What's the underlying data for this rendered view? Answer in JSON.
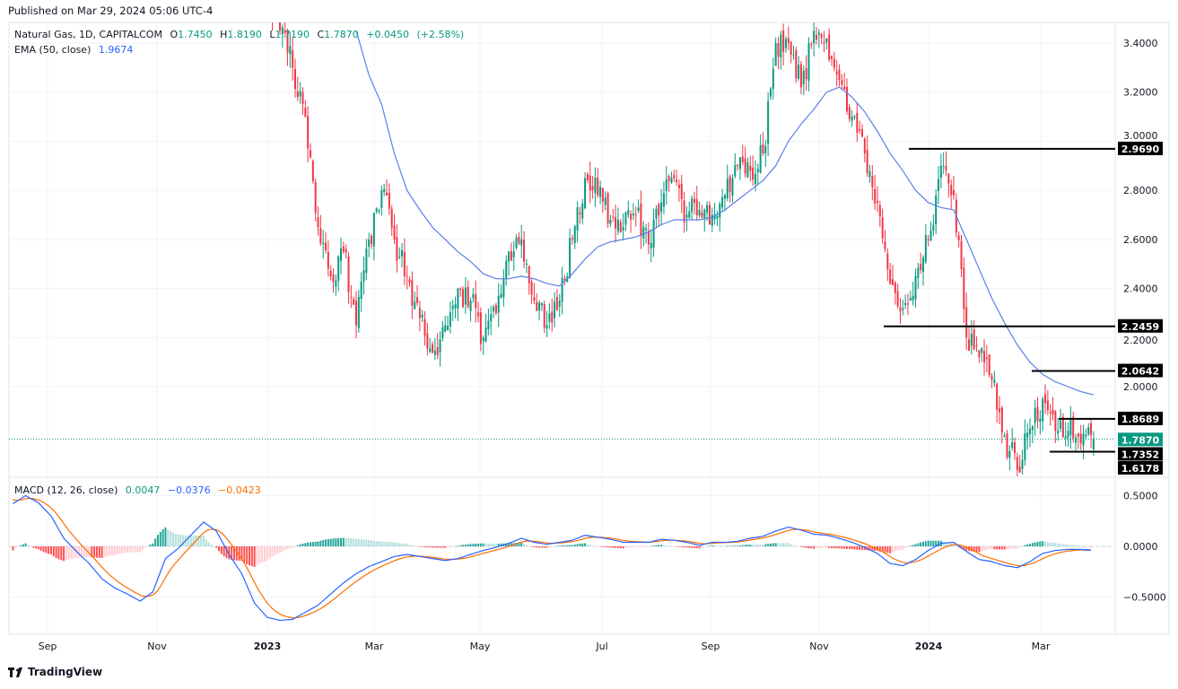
{
  "header": {
    "published": "Published on Mar 29, 2024 05:06 UTC-4"
  },
  "legend": {
    "symbol": "Natural Gas, 1D, CAPITALCOM",
    "open_label": "O",
    "open": "1.7450",
    "high_label": "H",
    "high": "1.8190",
    "low_label": "L",
    "low": "1.7190",
    "close_label": "C",
    "close": "1.7870",
    "change": "+0.0450",
    "change_pct": "(+2.58%)",
    "ema_label": "EMA (50, close)",
    "ema_value": "1.9674",
    "macd_label": "MACD (12, 26, close)",
    "macd_hist": "0.0047",
    "macd_line": "−0.0376",
    "macd_signal": "−0.0423"
  },
  "footer": {
    "brand": "TradingView"
  },
  "colors": {
    "up": "#089981",
    "down": "#f23645",
    "ema": "#5b7fe8",
    "macd": "#2962ff",
    "signal": "#ff6d00",
    "hist_up": "#26a69a",
    "hist_down": "#ff5252",
    "level_label_bg": "#000000",
    "last_price_bg": "#089981"
  },
  "chart_data": [
    {
      "type": "candlestick",
      "title": "Natural Gas, 1D, CAPITALCOM",
      "x_tick_labels": [
        "Sep",
        "Nov",
        "2023",
        "Mar",
        "May",
        "Jul",
        "Sep",
        "Nov",
        "2024",
        "Mar"
      ],
      "y_tick_labels": [
        "3.4000",
        "3.2000",
        "3.0000",
        "2.8000",
        "2.6000",
        "2.4000",
        "2.2000",
        "2.0000"
      ],
      "ylim": [
        1.62,
        3.5
      ],
      "weekly_start": "2023-01-09",
      "weekly_close": [
        3.45,
        3.3,
        3.1,
        2.65,
        2.45,
        2.55,
        2.25,
        2.6,
        2.8,
        2.6,
        2.45,
        2.28,
        2.14,
        2.25,
        2.4,
        2.35,
        2.2,
        2.3,
        2.55,
        2.6,
        2.35,
        2.25,
        2.35,
        2.6,
        2.85,
        2.78,
        2.68,
        2.65,
        2.7,
        2.58,
        2.75,
        2.85,
        2.7,
        2.72,
        2.7,
        2.78,
        2.9,
        2.88,
        2.95,
        3.4,
        3.4,
        3.22,
        3.45,
        3.42,
        3.25,
        3.1,
        2.95,
        2.75,
        2.42,
        2.32,
        2.45,
        2.6,
        2.9,
        2.78,
        2.2,
        2.12,
        2.03,
        1.8,
        1.66,
        1.83,
        1.95,
        1.82,
        1.82,
        1.77,
        1.787
      ],
      "ema50_weekly": [
        null,
        null,
        null,
        null,
        null,
        null,
        3.45,
        3.27,
        3.15,
        2.95,
        2.8,
        2.72,
        2.65,
        2.6,
        2.55,
        2.51,
        2.46,
        2.44,
        2.44,
        2.45,
        2.44,
        2.42,
        2.41,
        2.46,
        2.52,
        2.57,
        2.59,
        2.6,
        2.61,
        2.63,
        2.66,
        2.68,
        2.68,
        2.68,
        2.69,
        2.72,
        2.76,
        2.8,
        2.84,
        2.9,
        3.0,
        3.07,
        3.13,
        3.2,
        3.22,
        3.18,
        3.12,
        3.04,
        2.95,
        2.88,
        2.8,
        2.75,
        2.73,
        2.72,
        2.6,
        2.48,
        2.36,
        2.26,
        2.17,
        2.1,
        2.05,
        2.02,
        2.0,
        1.98,
        1.967
      ],
      "last_candle": {
        "open": 1.745,
        "high": 1.819,
        "low": 1.719,
        "close": 1.787
      },
      "horizontal_levels": [
        "2.9690",
        "2.2459",
        "2.0642",
        "1.8689",
        "1.7352"
      ],
      "last_price_label": "1.7870",
      "low_label": "1.6178"
    },
    {
      "type": "macd",
      "title": "MACD (12, 26, close)",
      "y_tick_labels": [
        "0.5000",
        "0.0000",
        "−0.5000"
      ],
      "ylim": [
        -0.85,
        0.6
      ],
      "weekly_start": "2022-08-15",
      "macd_weekly": [
        0.42,
        0.5,
        0.43,
        0.3,
        0.08,
        -0.05,
        -0.17,
        -0.32,
        -0.41,
        -0.47,
        -0.54,
        -0.45,
        -0.12,
        -0.02,
        0.11,
        0.24,
        0.15,
        -0.08,
        -0.27,
        -0.56,
        -0.7,
        -0.73,
        -0.72,
        -0.65,
        -0.58,
        -0.47,
        -0.36,
        -0.27,
        -0.2,
        -0.15,
        -0.1,
        -0.08,
        -0.1,
        -0.12,
        -0.14,
        -0.12,
        -0.08,
        -0.04,
        -0.01,
        0.03,
        0.08,
        0.04,
        0.02,
        0.04,
        0.06,
        0.11,
        0.09,
        0.07,
        0.04,
        0.04,
        0.04,
        0.07,
        0.06,
        0.04,
        0.01,
        0.04,
        0.04,
        0.05,
        0.08,
        0.1,
        0.15,
        0.19,
        0.16,
        0.12,
        0.11,
        0.08,
        0.04,
        -0.01,
        -0.07,
        -0.17,
        -0.19,
        -0.13,
        -0.04,
        0.03,
        0.04,
        -0.05,
        -0.13,
        -0.15,
        -0.19,
        -0.21,
        -0.15,
        -0.07,
        -0.04,
        -0.03,
        -0.03,
        -0.0376
      ]
    }
  ]
}
